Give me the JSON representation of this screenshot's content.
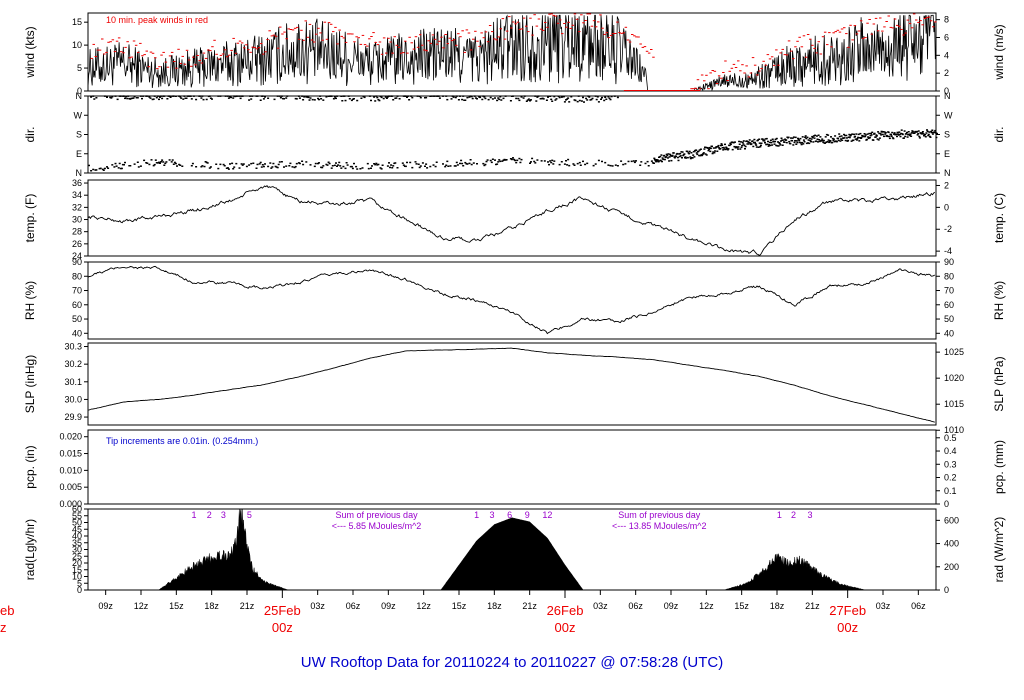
{
  "chart_data": {
    "type": "line",
    "title": "UW Rooftop Data for 20110224  to  20110227 @ 07:58:28  (UTC)",
    "x_axis": {
      "hour_labels": [
        "09z",
        "12z",
        "15z",
        "18z",
        "21z",
        "03z",
        "06z",
        "09z",
        "12z",
        "15z",
        "18z",
        "21z",
        "03z",
        "06z",
        "09z",
        "12z",
        "15z",
        "18z",
        "21z",
        "03z",
        "06z"
      ],
      "date_labels": [
        {
          "date": "25Feb",
          "sub": "00z"
        },
        {
          "date": "26Feb",
          "sub": "00z"
        },
        {
          "date": "27Feb",
          "sub": "00z"
        }
      ],
      "clipped_left_label": {
        "date": "eb",
        "sub": "z"
      }
    },
    "panels": [
      {
        "id": "wind",
        "ylabel_left": "wind (kts)",
        "ylabel_right": "wind (m/s)",
        "yticks_left": [
          "0",
          "5",
          "10",
          "15"
        ],
        "yticks_right": [
          "0",
          "2",
          "4",
          "6",
          "8"
        ],
        "ylim_left": [
          0,
          17
        ],
        "note": "10 min. peak winds in red",
        "series": [
          {
            "name": "peak",
            "color": "#ee0000",
            "x": [
              0,
              3,
              6,
              9,
              12,
              15,
              18,
              21,
              24,
              27,
              30,
              33,
              36,
              39,
              42,
              45,
              48,
              51,
              54,
              57,
              60,
              63,
              66,
              69,
              72
            ],
            "y": [
              9,
              10,
              7,
              8,
              10,
              11,
              14,
              13,
              11,
              11,
              12,
              11,
              15,
              15,
              16,
              14,
              7,
              0,
              5,
              6,
              10,
              11,
              14,
              15,
              17
            ]
          },
          {
            "name": "wind",
            "color": "#000000",
            "x": [
              0,
              3,
              6,
              9,
              12,
              15,
              18,
              21,
              24,
              27,
              30,
              33,
              36,
              39,
              42,
              45,
              48,
              51,
              54,
              57,
              60,
              63,
              66,
              69,
              72
            ],
            "y": [
              5,
              6,
              4,
              5,
              6,
              7,
              9,
              8,
              6,
              7,
              8,
              7,
              10,
              11,
              11,
              9,
              2,
              0,
              2,
              3,
              6,
              7,
              9,
              10,
              11
            ]
          }
        ]
      },
      {
        "id": "dir",
        "ylabel_left": "dir.",
        "ylabel_right": "dir.",
        "yticks_left": [
          "N",
          "E",
          "S",
          "W",
          "N"
        ],
        "yticks_right": [
          "N",
          "E",
          "S",
          "W",
          "N"
        ],
        "ylim_left": [
          0,
          360
        ],
        "series": [
          {
            "name": "north",
            "x": [
              0,
              6,
              12,
              18,
              24,
              30,
              36,
              42,
              45
            ],
            "y": [
              355,
              358,
              355,
              352,
              350,
              355,
              350,
              345,
              348
            ]
          },
          {
            "name": "east",
            "x": [
              0,
              6,
              12,
              18,
              24,
              30,
              36,
              42,
              48
            ],
            "y": [
              20,
              50,
              30,
              40,
              30,
              40,
              55,
              45,
              40
            ]
          },
          {
            "name": "veering",
            "x": [
              48,
              51,
              54,
              57,
              60,
              63,
              66,
              69,
              72
            ],
            "y": [
              60,
              85,
              120,
              140,
              150,
              160,
              170,
              180,
              185
            ]
          }
        ]
      },
      {
        "id": "temp",
        "ylabel_left": "temp. (F)",
        "ylabel_right": "temp. (C)",
        "yticks_left": [
          "24",
          "26",
          "28",
          "30",
          "32",
          "34",
          "36"
        ],
        "yticks_right": [
          "-4",
          "-2",
          "0",
          "2"
        ],
        "ylim_left": [
          24,
          36.5
        ],
        "series": [
          {
            "name": "temp",
            "x": [
              0,
              3,
              6,
              9,
              12,
              15,
              18,
              21,
              24,
              27,
              30,
              33,
              36,
              39,
              42,
              45,
              48,
              51,
              54,
              57,
              60,
              63,
              66,
              69,
              72
            ],
            "y": [
              30.5,
              29.7,
              30.5,
              31.5,
              33,
              35.5,
              33,
              32.5,
              33,
              30,
              27,
              26.5,
              28.5,
              31.5,
              33.5,
              31,
              29,
              27,
              25,
              24.5,
              30,
              33,
              33,
              33.5,
              34.5
            ]
          }
        ]
      },
      {
        "id": "rh",
        "ylabel_left": "RH (%)",
        "ylabel_right": "RH (%)",
        "yticks_left": [
          "40",
          "50",
          "60",
          "70",
          "80",
          "90"
        ],
        "yticks_right": [
          "40",
          "50",
          "60",
          "70",
          "80",
          "90"
        ],
        "ylim_left": [
          36,
          90
        ],
        "series": [
          {
            "name": "rh",
            "x": [
              0,
              3,
              6,
              9,
              12,
              15,
              18,
              21,
              24,
              27,
              30,
              33,
              36,
              39,
              42,
              45,
              48,
              51,
              54,
              57,
              60,
              63,
              66,
              69,
              72
            ],
            "y": [
              80,
              87,
              85,
              76,
              75,
              71,
              76,
              82,
              84,
              78,
              68,
              63,
              55,
              40,
              50,
              48,
              55,
              65,
              68,
              73,
              60,
              73,
              75,
              84,
              80
            ]
          }
        ]
      },
      {
        "id": "slp",
        "ylabel_left": "SLP (inHg)",
        "ylabel_right": "SLP (hPa)",
        "yticks_left": [
          "29.9",
          "30.0",
          "30.1",
          "30.2",
          "30.3"
        ],
        "yticks_right": [
          "1010",
          "1015",
          "1020",
          "1025"
        ],
        "ylim_left": [
          29.855,
          30.32
        ],
        "series": [
          {
            "name": "slp",
            "x": [
              0,
              3,
              6,
              9,
              12,
              15,
              18,
              21,
              24,
              27,
              30,
              33,
              36,
              39,
              42,
              45,
              48,
              51,
              54,
              57,
              60,
              63,
              66,
              69,
              72
            ],
            "y": [
              29.94,
              29.985,
              30.0,
              30.025,
              30.055,
              30.085,
              30.13,
              30.18,
              30.235,
              30.275,
              30.28,
              30.285,
              30.29,
              30.265,
              30.25,
              30.24,
              30.225,
              30.195,
              30.165,
              30.13,
              30.08,
              30.02,
              29.97,
              29.92,
              29.87
            ]
          }
        ]
      },
      {
        "id": "pcp",
        "ylabel_left": "pcp. (in)",
        "ylabel_right": "pcp. (mm)",
        "yticks_left": [
          "0.000",
          "0.005",
          "0.010",
          "0.015",
          "0.020"
        ],
        "yticks_right": [
          "0",
          "0.1",
          "0.2",
          "0.3",
          "0.4",
          "0.5"
        ],
        "ylim_left": [
          0,
          0.022
        ],
        "note": "Tip increments are 0.01in. (0.254mm.)",
        "series": [
          {
            "name": "pcp",
            "x": [
              0,
              72
            ],
            "y": [
              0,
              0
            ]
          }
        ]
      },
      {
        "id": "rad",
        "ylabel_left": "rad(Lgly/hr)",
        "ylabel_right": "rad (W/m^2)",
        "yticks_left": [
          "0",
          "5",
          "10",
          "15",
          "20",
          "25",
          "30",
          "35",
          "40",
          "45",
          "50",
          "55",
          "60"
        ],
        "yticks_right": [
          "0",
          "200",
          "400",
          "600"
        ],
        "ylim_left": [
          0,
          60
        ],
        "hour_marks": [
          {
            "x": 9,
            "label": "1"
          },
          {
            "x": 10.3,
            "label": "2"
          },
          {
            "x": 11.5,
            "label": "3"
          },
          {
            "x": 13.7,
            "label": "5"
          },
          {
            "x": 33,
            "label": "1"
          },
          {
            "x": 34.3,
            "label": "3"
          },
          {
            "x": 35.8,
            "label": "6"
          },
          {
            "x": 37.3,
            "label": "9"
          },
          {
            "x": 39,
            "label": "12"
          },
          {
            "x": 58.7,
            "label": "1"
          },
          {
            "x": 59.9,
            "label": "2"
          },
          {
            "x": 61.3,
            "label": "3"
          }
        ],
        "notes": [
          {
            "x": 24.5,
            "line1": "Sum of previous day",
            "line2": "<--- 5.85 MJoules/m^2"
          },
          {
            "x": 48.5,
            "line1": "Sum of previous day",
            "line2": "<--- 13.85 MJoules/m^2"
          }
        ],
        "series": [
          {
            "name": "day1",
            "x": [
              6,
              8,
              9,
              10,
              11,
              12,
              12.5,
              13,
              13.5,
              14,
              15,
              17
            ],
            "y": [
              0,
              12,
              18,
              22,
              26,
              25,
              35,
              60,
              32,
              15,
              6,
              0
            ]
          },
          {
            "name": "day2",
            "x": [
              30,
              31.5,
              33,
              34.5,
              36,
              37.5,
              39,
              40.5,
              42
            ],
            "y": [
              0,
              18,
              36,
              48,
              53,
              50,
              38,
              18,
              0
            ]
          },
          {
            "name": "day3",
            "x": [
              54,
              56,
              57.5,
              58.5,
              59.5,
              60.5,
              61.5,
              62.5,
              64,
              66
            ],
            "y": [
              0,
              5,
              16,
              24,
              20,
              22,
              16,
              10,
              4,
              0
            ]
          }
        ]
      }
    ]
  }
}
